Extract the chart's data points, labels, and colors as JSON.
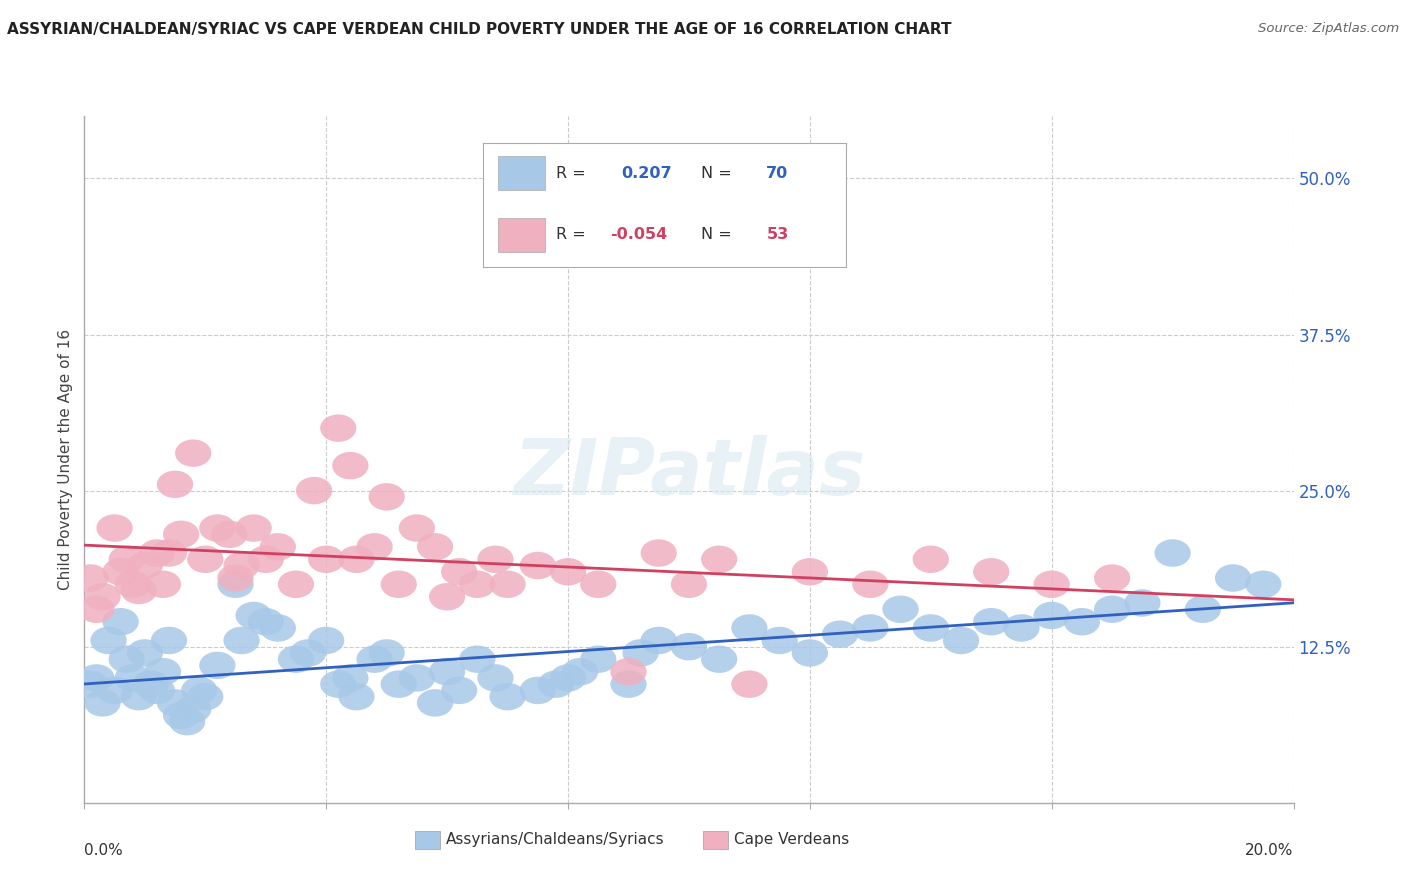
{
  "title": "ASSYRIAN/CHALDEAN/SYRIAC VS CAPE VERDEAN CHILD POVERTY UNDER THE AGE OF 16 CORRELATION CHART",
  "source": "Source: ZipAtlas.com",
  "ylabel": "Child Poverty Under the Age of 16",
  "ylabel_ticks": [
    "12.5%",
    "25.0%",
    "37.5%",
    "50.0%"
  ],
  "ylabel_tick_vals": [
    0.125,
    0.25,
    0.375,
    0.5
  ],
  "xlim": [
    0.0,
    0.2
  ],
  "ylim": [
    0.0,
    0.55
  ],
  "blue_color": "#a8c8e8",
  "pink_color": "#f0b0c0",
  "blue_line_color": "#3060c0",
  "pink_line_color": "#d04060",
  "blue_N": 70,
  "pink_N": 53,
  "blue_R": 0.207,
  "pink_R": -0.054,
  "legend_label_blue": "Assyrians/Chaldeans/Syriacs",
  "legend_label_pink": "Cape Verdeans",
  "blue_scatter": [
    [
      0.001,
      0.095
    ],
    [
      0.002,
      0.1
    ],
    [
      0.003,
      0.08
    ],
    [
      0.004,
      0.13
    ],
    [
      0.005,
      0.09
    ],
    [
      0.006,
      0.145
    ],
    [
      0.007,
      0.115
    ],
    [
      0.008,
      0.1
    ],
    [
      0.009,
      0.085
    ],
    [
      0.01,
      0.12
    ],
    [
      0.011,
      0.095
    ],
    [
      0.012,
      0.09
    ],
    [
      0.013,
      0.105
    ],
    [
      0.014,
      0.13
    ],
    [
      0.015,
      0.08
    ],
    [
      0.016,
      0.07
    ],
    [
      0.017,
      0.065
    ],
    [
      0.018,
      0.075
    ],
    [
      0.019,
      0.09
    ],
    [
      0.02,
      0.085
    ],
    [
      0.022,
      0.11
    ],
    [
      0.025,
      0.175
    ],
    [
      0.026,
      0.13
    ],
    [
      0.028,
      0.15
    ],
    [
      0.03,
      0.145
    ],
    [
      0.032,
      0.14
    ],
    [
      0.035,
      0.115
    ],
    [
      0.037,
      0.12
    ],
    [
      0.04,
      0.13
    ],
    [
      0.042,
      0.095
    ],
    [
      0.044,
      0.1
    ],
    [
      0.045,
      0.085
    ],
    [
      0.048,
      0.115
    ],
    [
      0.05,
      0.12
    ],
    [
      0.052,
      0.095
    ],
    [
      0.055,
      0.1
    ],
    [
      0.058,
      0.08
    ],
    [
      0.06,
      0.105
    ],
    [
      0.062,
      0.09
    ],
    [
      0.065,
      0.115
    ],
    [
      0.068,
      0.1
    ],
    [
      0.07,
      0.085
    ],
    [
      0.075,
      0.09
    ],
    [
      0.078,
      0.095
    ],
    [
      0.08,
      0.1
    ],
    [
      0.082,
      0.105
    ],
    [
      0.085,
      0.115
    ],
    [
      0.09,
      0.095
    ],
    [
      0.092,
      0.12
    ],
    [
      0.095,
      0.13
    ],
    [
      0.1,
      0.125
    ],
    [
      0.105,
      0.115
    ],
    [
      0.11,
      0.14
    ],
    [
      0.115,
      0.13
    ],
    [
      0.12,
      0.12
    ],
    [
      0.125,
      0.135
    ],
    [
      0.13,
      0.14
    ],
    [
      0.135,
      0.155
    ],
    [
      0.14,
      0.14
    ],
    [
      0.145,
      0.13
    ],
    [
      0.15,
      0.145
    ],
    [
      0.155,
      0.14
    ],
    [
      0.16,
      0.15
    ],
    [
      0.165,
      0.145
    ],
    [
      0.17,
      0.155
    ],
    [
      0.175,
      0.16
    ],
    [
      0.18,
      0.2
    ],
    [
      0.185,
      0.155
    ],
    [
      0.19,
      0.18
    ],
    [
      0.195,
      0.175
    ]
  ],
  "pink_scatter": [
    [
      0.001,
      0.18
    ],
    [
      0.002,
      0.155
    ],
    [
      0.003,
      0.165
    ],
    [
      0.005,
      0.22
    ],
    [
      0.006,
      0.185
    ],
    [
      0.007,
      0.195
    ],
    [
      0.008,
      0.175
    ],
    [
      0.009,
      0.17
    ],
    [
      0.01,
      0.19
    ],
    [
      0.012,
      0.2
    ],
    [
      0.013,
      0.175
    ],
    [
      0.014,
      0.2
    ],
    [
      0.015,
      0.255
    ],
    [
      0.016,
      0.215
    ],
    [
      0.018,
      0.28
    ],
    [
      0.02,
      0.195
    ],
    [
      0.022,
      0.22
    ],
    [
      0.024,
      0.215
    ],
    [
      0.025,
      0.18
    ],
    [
      0.026,
      0.19
    ],
    [
      0.028,
      0.22
    ],
    [
      0.03,
      0.195
    ],
    [
      0.032,
      0.205
    ],
    [
      0.035,
      0.175
    ],
    [
      0.038,
      0.25
    ],
    [
      0.04,
      0.195
    ],
    [
      0.042,
      0.3
    ],
    [
      0.044,
      0.27
    ],
    [
      0.045,
      0.195
    ],
    [
      0.048,
      0.205
    ],
    [
      0.05,
      0.245
    ],
    [
      0.052,
      0.175
    ],
    [
      0.055,
      0.22
    ],
    [
      0.058,
      0.205
    ],
    [
      0.06,
      0.165
    ],
    [
      0.062,
      0.185
    ],
    [
      0.065,
      0.175
    ],
    [
      0.068,
      0.195
    ],
    [
      0.07,
      0.175
    ],
    [
      0.075,
      0.19
    ],
    [
      0.08,
      0.185
    ],
    [
      0.085,
      0.175
    ],
    [
      0.09,
      0.105
    ],
    [
      0.095,
      0.2
    ],
    [
      0.1,
      0.175
    ],
    [
      0.105,
      0.195
    ],
    [
      0.11,
      0.095
    ],
    [
      0.12,
      0.185
    ],
    [
      0.13,
      0.175
    ],
    [
      0.14,
      0.195
    ],
    [
      0.15,
      0.185
    ],
    [
      0.16,
      0.175
    ],
    [
      0.17,
      0.18
    ]
  ]
}
